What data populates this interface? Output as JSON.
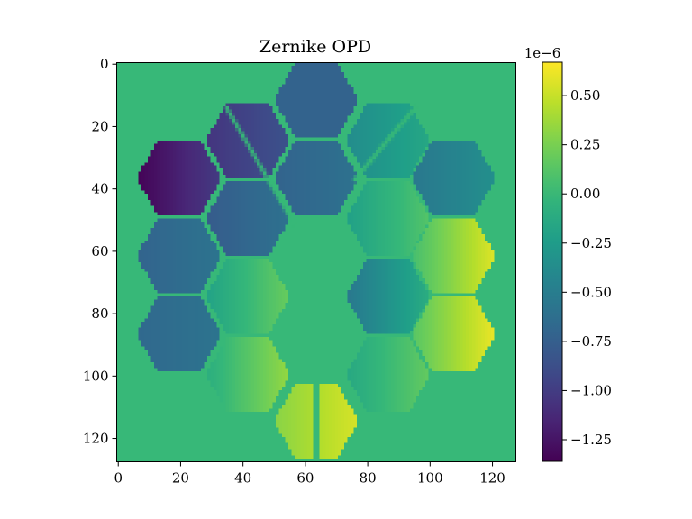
{
  "chart_data": {
    "type": "heatmap",
    "title": "Zernike OPD",
    "xlabel": "",
    "ylabel": "",
    "image_shape": [
      128,
      128
    ],
    "x_ticks": [
      0,
      20,
      40,
      60,
      80,
      100,
      120
    ],
    "y_ticks": [
      0,
      20,
      40,
      60,
      80,
      100,
      120
    ],
    "xlim": [
      -0.5,
      127.5
    ],
    "ylim": [
      127.5,
      -0.5
    ],
    "colormap": "viridis",
    "colorbar": {
      "range": [
        -1.36e-06,
        6.7e-07
      ],
      "ticks": [
        5e-07,
        2.5e-07,
        0.0,
        -2.5e-07,
        -5e-07,
        -7.5e-07,
        -1e-06,
        -1.25e-06
      ],
      "tick_labels": [
        "0.50",
        "0.25",
        "0.00",
        "−0.25",
        "−0.50",
        "−0.75",
        "−1.00",
        "−1.25"
      ],
      "offset_label": "1e−6",
      "placement": "right"
    },
    "background_value": 0.0,
    "segments": [
      {
        "center": [
          64,
          12
        ],
        "value_left": -7.2e-07,
        "value_right": -7.2e-07
      },
      {
        "center": [
          42,
          25
        ],
        "value_left": -1.05e-06,
        "value_right": -8.5e-07
      },
      {
        "center": [
          87,
          25
        ],
        "value_left": -3.8e-07,
        "value_right": -1.5e-07
      },
      {
        "center": [
          20,
          37
        ],
        "value_left": -1.35e-06,
        "value_right": -1e-06
      },
      {
        "center": [
          64,
          37
        ],
        "value_left": -7.2e-07,
        "value_right": -6e-07
      },
      {
        "center": [
          108,
          37
        ],
        "value_left": -5.5e-07,
        "value_right": -3.5e-07
      },
      {
        "center": [
          42,
          50
        ],
        "value_left": -7.8e-07,
        "value_right": -6e-07
      },
      {
        "center": [
          87,
          50
        ],
        "value_left": -2.2e-07,
        "value_right": 1.2e-07
      },
      {
        "center": [
          20,
          62
        ],
        "value_left": -7.2e-07,
        "value_right": -5.8e-07
      },
      {
        "center": [
          108,
          62
        ],
        "value_left": 5e-08,
        "value_right": 5.8e-07
      },
      {
        "center": [
          42,
          75
        ],
        "value_left": -2e-07,
        "value_right": 2e-07
      },
      {
        "center": [
          87,
          75
        ],
        "value_left": -5.5e-07,
        "value_right": -1e-07
      },
      {
        "center": [
          20,
          87
        ],
        "value_left": -6.8e-07,
        "value_right": -5.8e-07
      },
      {
        "center": [
          108,
          87
        ],
        "value_left": 1.2e-07,
        "value_right": 6.2e-07
      },
      {
        "center": [
          42,
          100
        ],
        "value_left": -1e-07,
        "value_right": 3.5e-07
      },
      {
        "center": [
          87,
          100
        ],
        "value_left": -1.5e-07,
        "value_right": 1.8e-07
      },
      {
        "center": [
          64,
          115
        ],
        "value_left": 3e-07,
        "value_right": 5.5e-07
      }
    ]
  }
}
